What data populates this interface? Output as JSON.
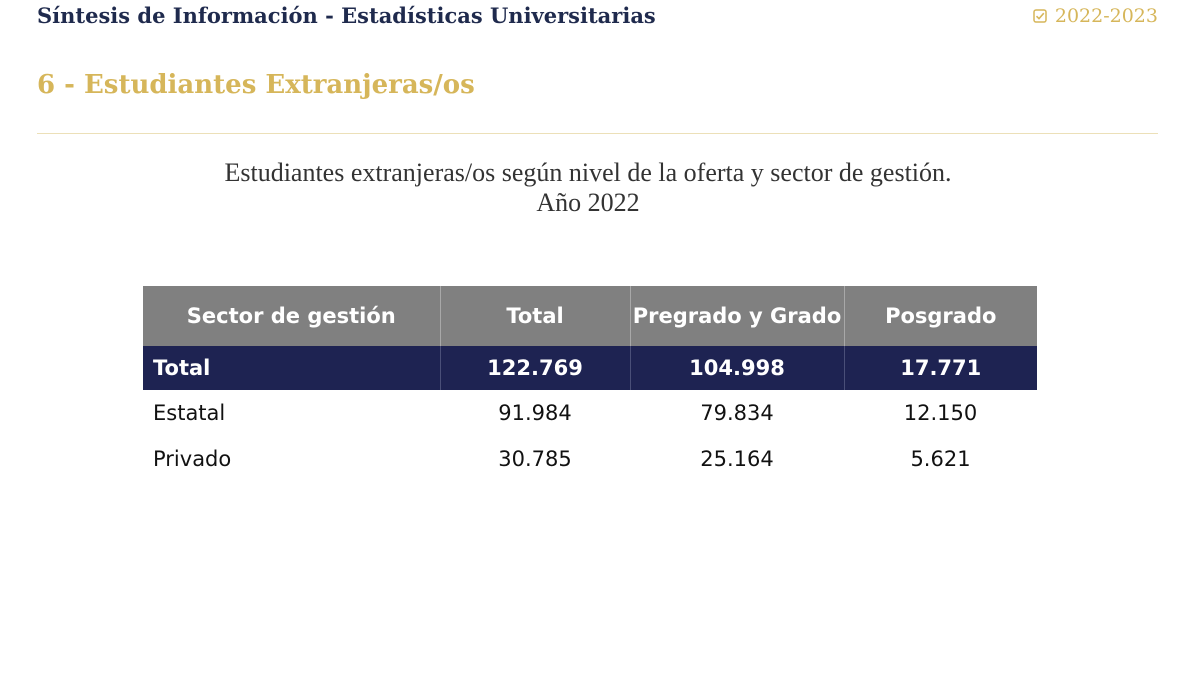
{
  "header": {
    "title": "Síntesis de Información - Estadísticas Universitarias",
    "year": "2022-2023",
    "year_icon": "check-box-icon"
  },
  "section": {
    "title": "6 - Estudiantes Extranjeras/os"
  },
  "caption": {
    "line1": "Estudiantes extranjeras/os según nivel de la oferta y sector de gestión.",
    "line2": "Año 2022"
  },
  "table": {
    "headers": [
      "Sector de gestión",
      "Total",
      "Pregrado y Grado",
      "Posgrado"
    ],
    "rows": [
      [
        "Total",
        "122.769",
        "104.998",
        "17.771"
      ],
      [
        "Estatal",
        "91.984",
        "79.834",
        "12.150"
      ],
      [
        "Privado",
        "30.785",
        "25.164",
        "5.621"
      ]
    ]
  },
  "colors": {
    "navy": "#1f2a4d",
    "gold": "#d6b65a",
    "header_gray": "#808080",
    "total_row": "#1e2352"
  }
}
